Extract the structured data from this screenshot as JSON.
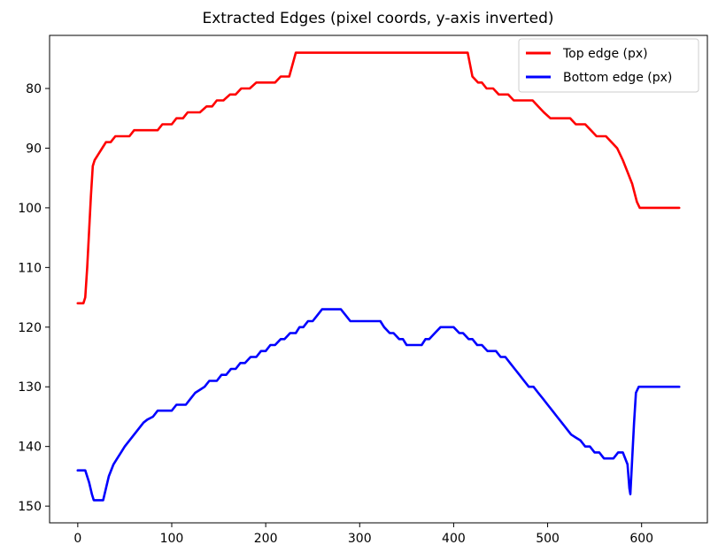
{
  "chart_data": {
    "type": "line",
    "title": "Extracted Edges (pixel coords, y-axis inverted)",
    "xlabel": "",
    "ylabel": "",
    "xlim": [
      -30,
      670
    ],
    "ylim": [
      152.8,
      71.1
    ],
    "y_inverted": true,
    "xticks": [
      0,
      100,
      200,
      300,
      400,
      500,
      600
    ],
    "yticks": [
      80,
      90,
      100,
      110,
      120,
      130,
      140,
      150
    ],
    "grid": false,
    "legend_position": "top-right",
    "series": [
      {
        "name": "Top edge (px)",
        "color": "#ff0000",
        "points": [
          [
            0,
            116
          ],
          [
            6,
            116
          ],
          [
            8,
            115
          ],
          [
            10,
            110
          ],
          [
            12,
            104
          ],
          [
            14,
            98
          ],
          [
            16,
            93
          ],
          [
            18,
            92
          ],
          [
            22,
            91
          ],
          [
            26,
            90
          ],
          [
            30,
            89
          ],
          [
            35,
            89
          ],
          [
            40,
            88
          ],
          [
            50,
            88
          ],
          [
            55,
            88
          ],
          [
            60,
            87
          ],
          [
            85,
            87
          ],
          [
            90,
            86
          ],
          [
            100,
            86
          ],
          [
            105,
            85
          ],
          [
            112,
            85
          ],
          [
            117,
            84
          ],
          [
            130,
            84
          ],
          [
            137,
            83
          ],
          [
            143,
            83
          ],
          [
            148,
            82
          ],
          [
            155,
            82
          ],
          [
            162,
            81
          ],
          [
            168,
            81
          ],
          [
            174,
            80
          ],
          [
            183,
            80
          ],
          [
            190,
            79
          ],
          [
            205,
            79
          ],
          [
            210,
            79
          ],
          [
            216,
            78
          ],
          [
            225,
            78
          ],
          [
            232,
            74
          ],
          [
            415,
            74
          ],
          [
            420,
            78
          ],
          [
            426,
            79
          ],
          [
            430,
            79
          ],
          [
            435,
            80
          ],
          [
            442,
            80
          ],
          [
            448,
            81
          ],
          [
            458,
            81
          ],
          [
            464,
            82
          ],
          [
            480,
            82
          ],
          [
            484,
            82
          ],
          [
            490,
            83
          ],
          [
            496,
            84
          ],
          [
            503,
            85
          ],
          [
            510,
            85
          ],
          [
            524,
            85
          ],
          [
            530,
            86
          ],
          [
            540,
            86
          ],
          [
            546,
            87
          ],
          [
            552,
            88
          ],
          [
            562,
            88
          ],
          [
            568,
            89
          ],
          [
            574,
            90
          ],
          [
            580,
            92
          ],
          [
            585,
            94
          ],
          [
            590,
            96
          ],
          [
            595,
            99
          ],
          [
            598,
            100
          ],
          [
            640,
            100
          ]
        ]
      },
      {
        "name": "Bottom edge (px)",
        "color": "#0000ff",
        "points": [
          [
            0,
            144
          ],
          [
            8,
            144
          ],
          [
            12,
            146
          ],
          [
            15,
            148
          ],
          [
            17,
            149
          ],
          [
            20,
            149
          ],
          [
            27,
            149
          ],
          [
            30,
            147
          ],
          [
            33,
            145
          ],
          [
            38,
            143
          ],
          [
            42,
            142
          ],
          [
            46,
            141
          ],
          [
            50,
            140
          ],
          [
            55,
            139
          ],
          [
            60,
            138
          ],
          [
            65,
            137
          ],
          [
            70,
            136
          ],
          [
            74,
            135.5
          ],
          [
            80,
            135
          ],
          [
            85,
            134
          ],
          [
            100,
            134
          ],
          [
            105,
            133
          ],
          [
            115,
            133
          ],
          [
            120,
            132
          ],
          [
            125,
            131
          ],
          [
            130,
            130.5
          ],
          [
            135,
            130
          ],
          [
            140,
            129
          ],
          [
            148,
            129
          ],
          [
            153,
            128
          ],
          [
            158,
            128
          ],
          [
            163,
            127
          ],
          [
            168,
            127
          ],
          [
            173,
            126
          ],
          [
            178,
            126
          ],
          [
            184,
            125
          ],
          [
            190,
            125
          ],
          [
            195,
            124
          ],
          [
            200,
            124
          ],
          [
            205,
            123
          ],
          [
            210,
            123
          ],
          [
            216,
            122
          ],
          [
            220,
            122
          ],
          [
            226,
            121
          ],
          [
            232,
            121
          ],
          [
            236,
            120
          ],
          [
            240,
            120
          ],
          [
            245,
            119
          ],
          [
            250,
            119
          ],
          [
            255,
            118
          ],
          [
            260,
            117
          ],
          [
            275,
            117
          ],
          [
            280,
            117
          ],
          [
            285,
            118
          ],
          [
            290,
            119
          ],
          [
            305,
            119
          ],
          [
            322,
            119
          ],
          [
            326,
            120
          ],
          [
            332,
            121
          ],
          [
            336,
            121
          ],
          [
            342,
            122
          ],
          [
            346,
            122
          ],
          [
            350,
            123
          ],
          [
            360,
            123
          ],
          [
            366,
            123
          ],
          [
            370,
            122
          ],
          [
            374,
            122
          ],
          [
            380,
            121
          ],
          [
            386,
            120
          ],
          [
            390,
            120
          ],
          [
            400,
            120
          ],
          [
            406,
            121
          ],
          [
            410,
            121
          ],
          [
            416,
            122
          ],
          [
            420,
            122
          ],
          [
            425,
            123
          ],
          [
            430,
            123
          ],
          [
            436,
            124
          ],
          [
            445,
            124
          ],
          [
            450,
            125
          ],
          [
            455,
            125
          ],
          [
            460,
            126
          ],
          [
            465,
            127
          ],
          [
            470,
            128
          ],
          [
            475,
            129
          ],
          [
            480,
            130
          ],
          [
            485,
            130
          ],
          [
            490,
            131
          ],
          [
            495,
            132
          ],
          [
            500,
            133
          ],
          [
            505,
            134
          ],
          [
            510,
            135
          ],
          [
            515,
            136
          ],
          [
            520,
            137
          ],
          [
            525,
            138
          ],
          [
            530,
            138.5
          ],
          [
            535,
            139
          ],
          [
            540,
            140
          ],
          [
            545,
            140
          ],
          [
            550,
            141
          ],
          [
            555,
            141
          ],
          [
            560,
            142
          ],
          [
            570,
            142
          ],
          [
            575,
            141
          ],
          [
            580,
            141
          ],
          [
            585,
            143
          ],
          [
            587,
            147
          ],
          [
            588,
            148
          ],
          [
            590,
            142
          ],
          [
            592,
            136
          ],
          [
            594,
            131
          ],
          [
            597,
            130
          ],
          [
            640,
            130
          ]
        ]
      }
    ]
  }
}
